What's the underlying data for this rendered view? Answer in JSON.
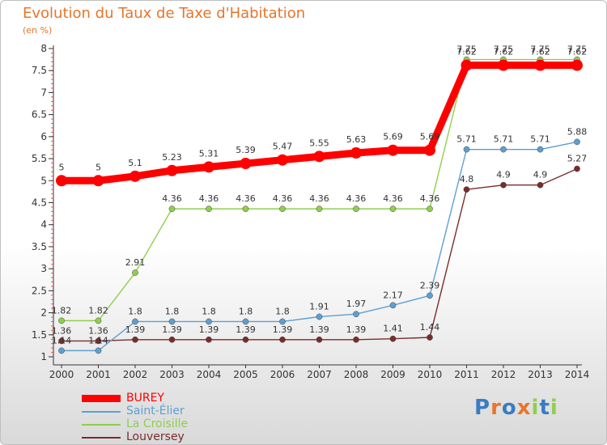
{
  "title": "Evolution du Taux de Taxe d'Habitation",
  "subtitle": "(en %)",
  "logo_text": "Proxiti",
  "colors": {
    "title": "#e8752a",
    "axis": "#333333",
    "label": "#333333"
  },
  "chart_data": {
    "type": "line",
    "title": "Evolution du Taux de Taxe d'Habitation",
    "subtitle": "(en %)",
    "xlabel": "",
    "ylabel": "",
    "x": [
      2000,
      2001,
      2002,
      2003,
      2004,
      2005,
      2006,
      2007,
      2008,
      2009,
      2010,
      2011,
      2012,
      2013,
      2014
    ],
    "ylim": [
      1,
      8
    ],
    "yticks": [
      1,
      1.5,
      2,
      2.5,
      3,
      3.5,
      4,
      4.5,
      5,
      5.5,
      6,
      6.5,
      7,
      7.5,
      8
    ],
    "ytick_labels": [
      "1",
      "1.5",
      "2",
      "2.5",
      "3",
      "3.5",
      "4",
      "4.5",
      "5",
      "5.5",
      "6",
      "6.5",
      "7",
      "7.5",
      "8"
    ],
    "grid": false,
    "legend_position": "bottom-left",
    "series": [
      {
        "name": "BUREY",
        "color": "#ff0000",
        "values": [
          5,
          5,
          5.1,
          5.23,
          5.31,
          5.39,
          5.47,
          5.55,
          5.63,
          5.69,
          5.69,
          7.62,
          7.62,
          7.62,
          7.62
        ],
        "labels": [
          "5",
          "5",
          "5.1",
          "5.23",
          "5.31",
          "5.39",
          "5.47",
          "5.55",
          "5.63",
          "5.69",
          "5.69",
          "7.62",
          "7.62",
          "7.62",
          "7.62"
        ]
      },
      {
        "name": "Saint-Élier",
        "color": "#5e9fd2",
        "values": [
          1.14,
          1.14,
          1.8,
          1.8,
          1.8,
          1.8,
          1.8,
          1.91,
          1.97,
          2.17,
          2.39,
          5.71,
          5.71,
          5.71,
          5.88
        ],
        "labels": [
          "1.14",
          "1.14",
          "1.8",
          "1.8",
          "1.8",
          "1.8",
          "1.8",
          "1.91",
          "1.97",
          "2.17",
          "2.39",
          "5.71",
          "5.71",
          "5.71",
          "5.88"
        ]
      },
      {
        "name": "La Croisille",
        "color": "#8fcf4d",
        "values": [
          1.82,
          1.82,
          2.91,
          4.36,
          4.36,
          4.36,
          4.36,
          4.36,
          4.36,
          4.36,
          4.36,
          7.75,
          7.75,
          7.75,
          7.75
        ],
        "labels": [
          "1.82",
          "1.82",
          "2.91",
          "4.36",
          "4.36",
          "4.36",
          "4.36",
          "4.36",
          "4.36",
          "4.36",
          "4.36",
          "7.75",
          "7.75",
          "7.75",
          "7.75"
        ]
      },
      {
        "name": "Louversey",
        "color": "#7a2c2c",
        "values": [
          1.36,
          1.36,
          1.39,
          1.39,
          1.39,
          1.39,
          1.39,
          1.39,
          1.39,
          1.41,
          1.44,
          4.8,
          4.9,
          4.9,
          5.27
        ],
        "labels": [
          "1.36",
          "1.36",
          "1.39",
          "1.39",
          "1.39",
          "1.39",
          "1.39",
          "1.39",
          "1.39",
          "1.41",
          "1.44",
          "4.8",
          "4.9",
          "4.9",
          "5.27"
        ]
      }
    ]
  }
}
